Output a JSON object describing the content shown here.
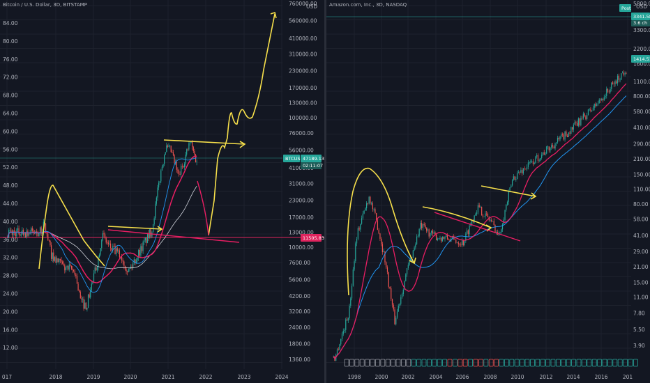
{
  "colors": {
    "background": "#131722",
    "grid": "#1e222d",
    "text": "#b2b5be",
    "up": "#26a69a",
    "down": "#ef5350",
    "annotation": "#f7e04b",
    "ma_red": "#e91e63",
    "ma_blue": "#2196f3",
    "ma_white": "#d1d4dc",
    "badge_teal": "#26a69a",
    "badge_red": "#e0245e"
  },
  "chart_data": [
    {
      "type": "line",
      "title": "Bitcoin / U.S. Dollar, 3D, BITSTAMP",
      "scale": "log",
      "x_ticks": [
        "017",
        "2018",
        "2019",
        "2020",
        "2021",
        "2022",
        "2023",
        "2024"
      ],
      "left_axis_ticks": [
        "84.00",
        "80.00",
        "76.00",
        "72.00",
        "68.00",
        "64.00",
        "60.00",
        "56.00",
        "52.00",
        "48.00",
        "44.00",
        "40.00",
        "36.00",
        "32.00",
        "28.00",
        "24.00",
        "20.00",
        "16.00",
        "12.00"
      ],
      "right_axis_ticks": [
        "760000.00",
        "USD",
        "560000.00",
        "410000.00",
        "310000.00",
        "230000.00",
        "170000.00",
        "130000.00",
        "100000.00",
        "76000.00",
        "56000.00",
        "41000.00",
        "31000.00",
        "23000.00",
        "17000.00",
        "13000.00",
        "10000.00",
        "7600.00",
        "5600.00",
        "4200.00",
        "3200.00",
        "2400.00",
        "1800.00",
        "1360.00"
      ],
      "badges": [
        {
          "text": "47189.13",
          "label": "BTCUSD",
          "sub": "02:11:07",
          "color": "#26a69a"
        },
        {
          "text": "11505.83",
          "color": "#e0245e"
        }
      ],
      "series": [
        {
          "name": "BTCUSD",
          "x": [
            2017.9,
            2018.0,
            2018.2,
            2018.5,
            2018.8,
            2018.95,
            2019.1,
            2019.4,
            2019.5,
            2019.7,
            2020.0,
            2020.2,
            2020.5,
            2020.8,
            2021.0,
            2021.15,
            2021.3,
            2021.5,
            2021.8,
            2021.95
          ],
          "y": [
            13000,
            15000,
            8500,
            7000,
            6500,
            3800,
            3500,
            8000,
            12500,
            10000,
            8500,
            6500,
            9500,
            13500,
            33000,
            58000,
            55000,
            35000,
            65000,
            47189
          ]
        }
      ]
    },
    {
      "type": "line",
      "title": "Amazon.com, Inc., 3D, NASDAQ",
      "scale": "log",
      "x_ticks": [
        "1998",
        "2000",
        "2002",
        "2004",
        "2006",
        "2008",
        "2010",
        "2012",
        "2014",
        "2016",
        "201"
      ],
      "right_axis_ticks": [
        "5800.00",
        "USD",
        "4400.00",
        "3300.00",
        "2200.00",
        "1600.00",
        "1100.00",
        "800.00",
        "580.00",
        "410.00",
        "290.00",
        "210.00",
        "150.00",
        "110.00",
        "80.00",
        "58.00",
        "41.00",
        "29.00",
        "21.00",
        "15.00",
        "11.00",
        "7.80",
        "5.50",
        "3.90"
      ],
      "badges": [
        {
          "text": "1414.51",
          "color": "#26a69a"
        },
        {
          "text": "3341.58",
          "label": "Post",
          "sub": "3.6 ch",
          "color": "#26a69a"
        }
      ],
      "series": [
        {
          "name": "AMZN",
          "x": [
            1997.5,
            1998.5,
            1999.0,
            1999.9,
            2000.5,
            2001.0,
            2001.7,
            2002.5,
            2003.5,
            2004.5,
            2005.5,
            2006.5,
            2007.5,
            2008.5,
            2009.0,
            2010.0,
            2012.0,
            2014.0,
            2016.0,
            2017.9
          ],
          "y": [
            3.0,
            8.0,
            40.0,
            95.0,
            50.0,
            25.0,
            6.5,
            18.0,
            50.0,
            40.0,
            38.0,
            35.0,
            75.0,
            55.0,
            40.0,
            140.0,
            230.0,
            380.0,
            700.0,
            1414
          ]
        }
      ]
    }
  ],
  "panes": {
    "left": {
      "title": "Bitcoin / U.S. Dollar, 3D, BITSTAMP"
    },
    "right": {
      "title": "Amazon.com, Inc., 3D, NASDAQ"
    }
  }
}
